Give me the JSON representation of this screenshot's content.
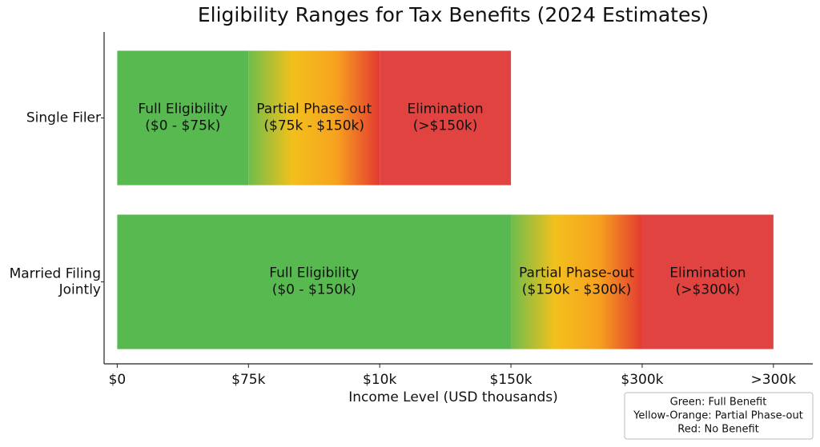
{
  "chart_data": {
    "type": "stacked-barh",
    "title": "Eligibility Ranges for Tax Benefits (2024 Estimates)",
    "xlabel": "Income Level (USD thousands)",
    "categories": [
      "Single Filer",
      "Married Filing\nJointly"
    ],
    "series": [
      {
        "name": "Full Eligibility",
        "colors": [
          "#57b94f"
        ],
        "values": [
          1,
          3
        ],
        "ranges": [
          "($0 - $75k)",
          "($0 - $150k)"
        ]
      },
      {
        "name": "Partial Phase-out",
        "colors": [
          "#6fbd4c",
          "#f2c01c",
          "#f7a21f",
          "#e33a30"
        ],
        "values": [
          1,
          1
        ],
        "ranges": [
          "($75k - $150k)",
          "($150k - $300k)"
        ]
      },
      {
        "name": "Elimination",
        "colors": [
          "#e04340"
        ],
        "values": [
          1,
          1
        ],
        "ranges": [
          "(>$150k)",
          "(>$300k)"
        ]
      }
    ],
    "xlim": [
      -0.1,
      5.3
    ],
    "xticks": [
      {
        "value": 0,
        "label": "$0"
      },
      {
        "value": 1,
        "label": "$75k"
      },
      {
        "value": 2,
        "label": "$10k"
      },
      {
        "value": 3,
        "label": "$150k"
      },
      {
        "value": 4,
        "label": "$300k"
      },
      {
        "value": 5,
        "label": ">300k"
      }
    ],
    "legend": {
      "position": "lower right",
      "lines": [
        "Green: Full Benefit",
        "Yellow-Orange: Partial Phase-out",
        "Red: No Benefit"
      ]
    }
  }
}
